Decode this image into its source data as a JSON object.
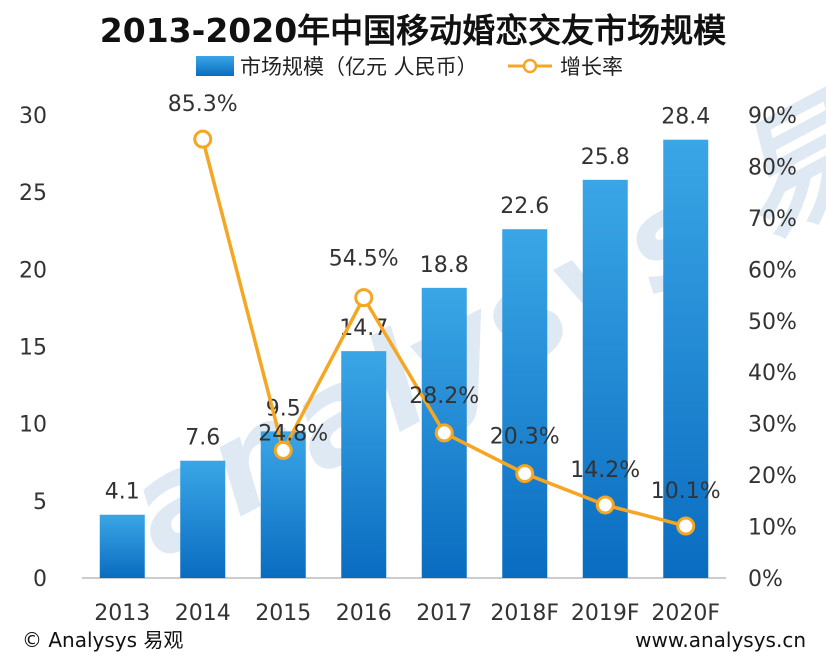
{
  "chart_data": {
    "type": "bar",
    "title": "2013-2020年中国移动婚恋交友市场规模",
    "categories": [
      "2013",
      "2014",
      "2015",
      "2016",
      "2017",
      "2018F",
      "2019F",
      "2020F"
    ],
    "series": [
      {
        "name": "市场规模（亿元 人民币）",
        "type": "bar",
        "axis": "left",
        "values": [
          4.1,
          7.6,
          9.5,
          14.7,
          18.8,
          22.6,
          25.8,
          28.4
        ],
        "labels": [
          "4.1",
          "7.6",
          "9.5",
          "14.7",
          "18.8",
          "22.6",
          "25.8",
          "28.4"
        ]
      },
      {
        "name": "增长率",
        "type": "line",
        "axis": "right",
        "values": [
          null,
          85.3,
          24.8,
          54.5,
          28.2,
          20.3,
          14.2,
          10.1
        ],
        "labels": [
          "",
          "85.3%",
          "24.8%",
          "54.5%",
          "28.2%",
          "20.3%",
          "14.2%",
          "10.1%"
        ]
      }
    ],
    "y_left": {
      "lim": [
        0,
        30
      ],
      "ticks": [
        "0",
        "5",
        "10",
        "15",
        "20",
        "25",
        "30"
      ]
    },
    "y_right": {
      "lim": [
        0,
        90
      ],
      "ticks": [
        "0%",
        "10%",
        "20%",
        "30%",
        "40%",
        "50%",
        "60%",
        "70%",
        "80%",
        "90%"
      ]
    },
    "legend_position": "top-center",
    "grid": false
  },
  "colors": {
    "bar_top": "#3aa6e6",
    "bar_bottom": "#0a6cc0",
    "line": "#f5a623",
    "marker_fill": "#ffffff"
  },
  "footer": {
    "left": "© Analysys 易观",
    "right": "www.analysys.cn"
  },
  "watermark": "analysys 易观"
}
